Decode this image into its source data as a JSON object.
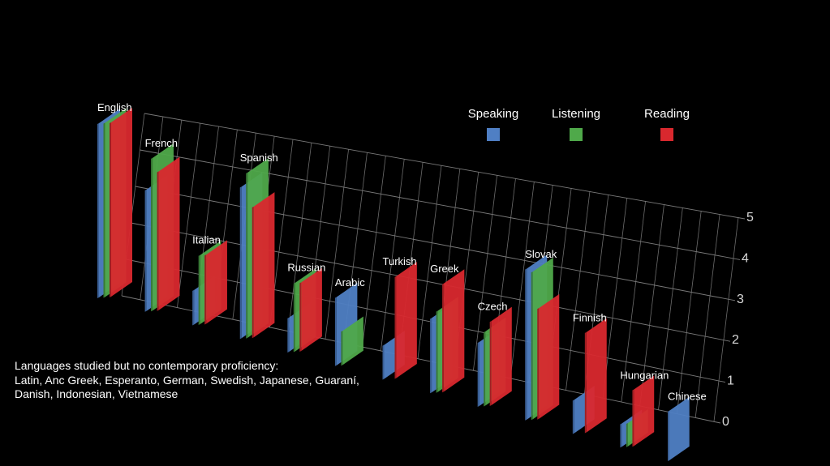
{
  "chart_data": {
    "type": "bar",
    "categories": [
      "English",
      "French",
      "Italian",
      "Spanish",
      "Russian",
      "Arabic",
      "Turkish",
      "Greek",
      "Czech",
      "Slovak",
      "Finnish",
      "Hungarian",
      "Chinese"
    ],
    "series": [
      {
        "name": "Speaking",
        "values": [
          5,
          3.5,
          1,
          4.4,
          1,
          2,
          1,
          2.2,
          1.9,
          4.5,
          1,
          0.7,
          1.5
        ]
      },
      {
        "name": "Listening",
        "values": [
          5,
          4.4,
          2,
          4.8,
          2,
          1,
          0,
          2.4,
          2.2,
          4.4,
          0,
          0.7,
          0
        ]
      },
      {
        "name": "Reading",
        "values": [
          5,
          4.0,
          2,
          3.8,
          2,
          0,
          3,
          3.2,
          2.5,
          3.3,
          3,
          1.7,
          0
        ]
      }
    ],
    "ylim": [
      0,
      5
    ],
    "yticks": [
      "0",
      "1",
      "2",
      "3",
      "4",
      "5"
    ],
    "legend_position": "top-right",
    "grid": true,
    "colors": {
      "Speaking": "#4f7fc4",
      "Listening": "#4fa94a",
      "Reading": "#d9282e"
    }
  },
  "note": {
    "line1": "Languages studied but no contemporary proficiency:",
    "line2": "Latin, Anc Greek, Esperanto, German, Swedish, Japanese, Guaraní,",
    "line3": "Danish, Indonesian, Vietnamese"
  }
}
